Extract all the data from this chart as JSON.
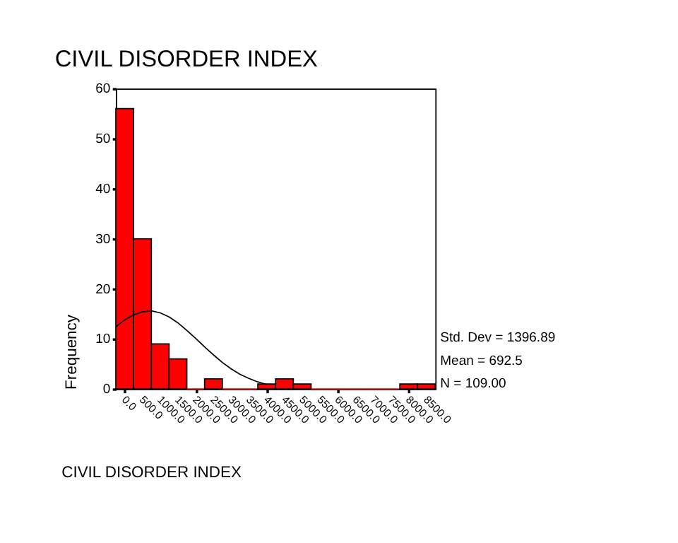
{
  "chart_data": {
    "type": "histogram",
    "title": "CIVIL DISORDER INDEX",
    "xlabel": "CIVIL DISORDER INDEX",
    "ylabel": "Frequency",
    "bins": [
      -250,
      250,
      750,
      1250,
      1750,
      2250,
      2750,
      3250,
      3750,
      4250,
      4750,
      5250,
      5750,
      6250,
      6750,
      7250,
      7750,
      8250,
      8750
    ],
    "values": [
      56,
      30,
      9,
      6,
      0,
      2,
      0,
      0,
      1,
      2,
      1,
      0,
      0,
      0,
      0,
      0,
      1,
      1
    ],
    "color": "#ff0000",
    "series": [
      {
        "type": "line",
        "color": "#000000",
        "x": [
          -250,
          0,
          250,
          500,
          750,
          1000,
          1250,
          1500,
          1750,
          2000,
          2250,
          2500,
          2750,
          3000,
          3250,
          3500,
          3750,
          4000
        ],
        "values": [
          12.4,
          13.8,
          14.8,
          15.4,
          15.6,
          15.2,
          14.4,
          13.2,
          11.7,
          10.1,
          8.4,
          6.8,
          5.3,
          4.0,
          2.9,
          2.1,
          1.4,
          0.9
        ]
      }
    ],
    "xlim": [
      -250,
      8750
    ],
    "ylim": [
      0,
      60
    ],
    "yticks": [
      0,
      10,
      20,
      30,
      40,
      50,
      60
    ],
    "xticks": [
      {
        "value": 0,
        "label": "0.0"
      },
      {
        "value": 500,
        "label": "500.0"
      },
      {
        "value": 1000,
        "label": "1000.0"
      },
      {
        "value": 1500,
        "label": "1500.0"
      },
      {
        "value": 2000,
        "label": "2000.0"
      },
      {
        "value": 2500,
        "label": "2500.0"
      },
      {
        "value": 3000,
        "label": "3000.0"
      },
      {
        "value": 3500,
        "label": "3500.0"
      },
      {
        "value": 4000,
        "label": "4000.0"
      },
      {
        "value": 4500,
        "label": "4500.0"
      },
      {
        "value": 5000,
        "label": "5000.0"
      },
      {
        "value": 5500,
        "label": "5500.0"
      },
      {
        "value": 6000,
        "label": "6000.0"
      },
      {
        "value": 6500,
        "label": "6500.0"
      },
      {
        "value": 7000,
        "label": "7000.0"
      },
      {
        "value": 7500,
        "label": "7500.0"
      },
      {
        "value": 8000,
        "label": "8000.0"
      },
      {
        "value": 8500,
        "label": "8500.0"
      }
    ],
    "annotations": [
      "Std. Dev = 1396.89",
      "Mean = 692.5",
      "N = 109.00"
    ],
    "grid": false
  }
}
